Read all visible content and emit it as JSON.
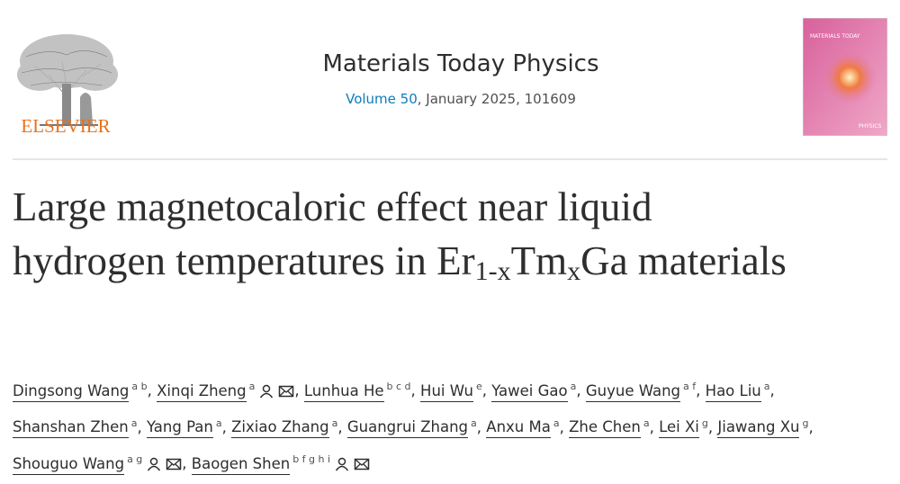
{
  "header": {
    "publisher": "ELSEVIER",
    "journal": "Materials Today Physics",
    "volume": "Volume 50",
    "issue_info": ", January 2025, 101609",
    "cover": {
      "title": "MATERIALS TODAY",
      "subtitle": "PHYSICS"
    }
  },
  "article": {
    "title": {
      "parts": [
        {
          "text": "Large magnetocaloric effect near liquid hydrogen temperatures in Er"
        },
        {
          "text": "1-x",
          "sub": true
        },
        {
          "text": "Tm"
        },
        {
          "text": "x",
          "sub": true
        },
        {
          "text": "Ga materials"
        }
      ]
    },
    "separator": ",",
    "authors": [
      {
        "name": "Dingsong Wang",
        "affiliations": "a b"
      },
      {
        "name": "Xinqi Zheng",
        "affiliations": "a",
        "corresponding": true
      },
      {
        "name": "Lunhua He",
        "affiliations": "b c d"
      },
      {
        "name": "Hui Wu",
        "affiliations": "e"
      },
      {
        "name": "Yawei Gao",
        "affiliations": "a"
      },
      {
        "name": "Guyue Wang",
        "affiliations": "a f"
      },
      {
        "name": "Hao Liu",
        "affiliations": "a"
      },
      {
        "name": "Shanshan Zhen",
        "affiliations": "a"
      },
      {
        "name": "Yang Pan",
        "affiliations": "a"
      },
      {
        "name": "Zixiao Zhang",
        "affiliations": "a"
      },
      {
        "name": "Guangrui Zhang",
        "affiliations": "a"
      },
      {
        "name": "Anxu Ma",
        "affiliations": "a"
      },
      {
        "name": "Zhe Chen",
        "affiliations": "a"
      },
      {
        "name": "Lei Xi",
        "affiliations": "g"
      },
      {
        "name": "Jiawang Xu",
        "affiliations": "g"
      },
      {
        "name": "Shouguo Wang",
        "affiliations": "a g",
        "corresponding": true
      },
      {
        "name": "Baogen Shen",
        "affiliations": "b f g h i",
        "corresponding": true
      }
    ]
  }
}
